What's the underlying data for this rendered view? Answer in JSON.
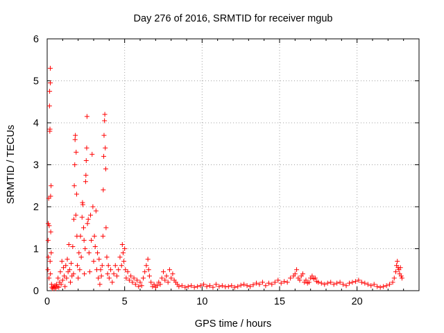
{
  "chart_data": {
    "type": "scatter",
    "title": "Day 276 of 2016, SRMTID for receiver mgub",
    "xlabel": "GPS time / hours",
    "ylabel": "SRMTID / TECUs",
    "xlim": [
      0,
      24
    ],
    "ylim": [
      0,
      6
    ],
    "xticks": [
      0,
      5,
      10,
      15,
      20
    ],
    "yticks": [
      0,
      1,
      2,
      3,
      4,
      5,
      6
    ],
    "grid": true,
    "marker": "plus",
    "series_color": "#ff0000",
    "series": [
      {
        "name": "SRMTID",
        "points": [
          [
            0.05,
            0.5
          ],
          [
            0.06,
            1.2
          ],
          [
            0.07,
            1.6
          ],
          [
            0.08,
            0.8
          ],
          [
            0.1,
            2.2
          ],
          [
            0.12,
            0.3
          ],
          [
            0.13,
            1.55
          ],
          [
            0.15,
            4.4
          ],
          [
            0.16,
            4.75
          ],
          [
            0.17,
            3.8
          ],
          [
            0.18,
            3.85
          ],
          [
            0.19,
            0.7
          ],
          [
            0.2,
            5.3
          ],
          [
            0.2,
            4.95
          ],
          [
            0.21,
            0.4
          ],
          [
            0.22,
            2.25
          ],
          [
            0.23,
            1.4
          ],
          [
            0.25,
            2.5
          ],
          [
            0.26,
            0.9
          ],
          [
            0.28,
            0.15
          ],
          [
            0.3,
            0.08
          ],
          [
            0.35,
            0.05
          ],
          [
            0.4,
            0.1
          ],
          [
            0.45,
            0.07
          ],
          [
            0.5,
            0.12
          ],
          [
            0.55,
            0.05
          ],
          [
            0.6,
            0.15
          ],
          [
            0.65,
            0.1
          ],
          [
            0.7,
            0.3
          ],
          [
            0.75,
            0.08
          ],
          [
            0.8,
            0.2
          ],
          [
            0.85,
            0.45
          ],
          [
            0.9,
            0.15
          ],
          [
            0.95,
            0.7
          ],
          [
            1.0,
            0.25
          ],
          [
            1.05,
            0.55
          ],
          [
            1.1,
            0.35
          ],
          [
            1.15,
            0.1
          ],
          [
            1.2,
            0.6
          ],
          [
            1.25,
            0.3
          ],
          [
            1.3,
            0.75
          ],
          [
            1.35,
            0.45
          ],
          [
            1.4,
            1.1
          ],
          [
            1.45,
            0.5
          ],
          [
            1.5,
            0.2
          ],
          [
            1.55,
            0.65
          ],
          [
            1.6,
            0.35
          ],
          [
            1.65,
            1.05
          ],
          [
            1.7,
            0.4
          ],
          [
            1.72,
            1.7
          ],
          [
            1.75,
            2.5
          ],
          [
            1.78,
            3.0
          ],
          [
            1.8,
            3.6
          ],
          [
            1.82,
            3.7
          ],
          [
            1.85,
            1.8
          ],
          [
            1.87,
            3.3
          ],
          [
            1.9,
            2.3
          ],
          [
            1.92,
            1.3
          ],
          [
            1.95,
            0.6
          ],
          [
            2.0,
            0.3
          ],
          [
            2.05,
            0.9
          ],
          [
            2.1,
            0.5
          ],
          [
            2.15,
            1.3
          ],
          [
            2.2,
            0.8
          ],
          [
            2.25,
            1.75
          ],
          [
            2.28,
            2.1
          ],
          [
            2.3,
            2.05
          ],
          [
            2.35,
            1.5
          ],
          [
            2.38,
            1.2
          ],
          [
            2.4,
            0.4
          ],
          [
            2.45,
            1.0
          ],
          [
            2.48,
            2.6
          ],
          [
            2.5,
            2.75
          ],
          [
            2.52,
            3.1
          ],
          [
            2.55,
            3.4
          ],
          [
            2.57,
            4.15
          ],
          [
            2.6,
            1.6
          ],
          [
            2.65,
            1.7
          ],
          [
            2.7,
            0.9
          ],
          [
            2.75,
            0.45
          ],
          [
            2.8,
            1.8
          ],
          [
            2.85,
            1.2
          ],
          [
            2.9,
            3.25
          ],
          [
            2.95,
            2.0
          ],
          [
            3.0,
            0.7
          ],
          [
            3.05,
            1.3
          ],
          [
            3.1,
            1.05
          ],
          [
            3.15,
            1.9
          ],
          [
            3.2,
            0.5
          ],
          [
            3.25,
            0.9
          ],
          [
            3.3,
            0.3
          ],
          [
            3.35,
            0.75
          ],
          [
            3.4,
            0.15
          ],
          [
            3.45,
            0.5
          ],
          [
            3.5,
            0.35
          ],
          [
            3.55,
            0.6
          ],
          [
            3.6,
            1.3
          ],
          [
            3.62,
            2.4
          ],
          [
            3.65,
            3.2
          ],
          [
            3.67,
            3.7
          ],
          [
            3.7,
            4.05
          ],
          [
            3.72,
            4.2
          ],
          [
            3.75,
            3.4
          ],
          [
            3.78,
            2.9
          ],
          [
            3.8,
            1.5
          ],
          [
            3.85,
            0.8
          ],
          [
            3.9,
            0.4
          ],
          [
            3.95,
            0.6
          ],
          [
            4.0,
            0.3
          ],
          [
            4.1,
            0.5
          ],
          [
            4.2,
            0.2
          ],
          [
            4.3,
            0.4
          ],
          [
            4.4,
            0.6
          ],
          [
            4.5,
            0.35
          ],
          [
            4.6,
            0.5
          ],
          [
            4.7,
            0.8
          ],
          [
            4.8,
            0.6
          ],
          [
            4.85,
            1.1
          ],
          [
            4.9,
            0.9
          ],
          [
            4.95,
            0.7
          ],
          [
            5.0,
            1.0
          ],
          [
            5.05,
            0.5
          ],
          [
            5.1,
            0.3
          ],
          [
            5.2,
            0.45
          ],
          [
            5.3,
            0.25
          ],
          [
            5.4,
            0.35
          ],
          [
            5.5,
            0.2
          ],
          [
            5.6,
            0.3
          ],
          [
            5.7,
            0.15
          ],
          [
            5.8,
            0.25
          ],
          [
            5.9,
            0.1
          ],
          [
            6.0,
            0.2
          ],
          [
            6.1,
            0.12
          ],
          [
            6.2,
            0.3
          ],
          [
            6.3,
            0.45
          ],
          [
            6.4,
            0.6
          ],
          [
            6.5,
            0.75
          ],
          [
            6.55,
            0.5
          ],
          [
            6.6,
            0.35
          ],
          [
            6.7,
            0.2
          ],
          [
            6.8,
            0.1
          ],
          [
            6.9,
            0.15
          ],
          [
            7.0,
            0.08
          ],
          [
            7.1,
            0.12
          ],
          [
            7.2,
            0.2
          ],
          [
            7.3,
            0.15
          ],
          [
            7.4,
            0.3
          ],
          [
            7.5,
            0.45
          ],
          [
            7.6,
            0.25
          ],
          [
            7.7,
            0.35
          ],
          [
            7.8,
            0.2
          ],
          [
            7.9,
            0.5
          ],
          [
            8.0,
            0.3
          ],
          [
            8.1,
            0.4
          ],
          [
            8.2,
            0.25
          ],
          [
            8.3,
            0.2
          ],
          [
            8.4,
            0.15
          ],
          [
            8.5,
            0.1
          ],
          [
            8.7,
            0.12
          ],
          [
            8.9,
            0.08
          ],
          [
            9.1,
            0.1
          ],
          [
            9.3,
            0.12
          ],
          [
            9.5,
            0.08
          ],
          [
            9.7,
            0.1
          ],
          [
            9.9,
            0.12
          ],
          [
            10.1,
            0.15
          ],
          [
            10.3,
            0.1
          ],
          [
            10.5,
            0.12
          ],
          [
            10.7,
            0.08
          ],
          [
            10.9,
            0.15
          ],
          [
            11.1,
            0.1
          ],
          [
            11.3,
            0.12
          ],
          [
            11.5,
            0.09
          ],
          [
            11.7,
            0.1
          ],
          [
            11.9,
            0.12
          ],
          [
            12.1,
            0.08
          ],
          [
            12.3,
            0.1
          ],
          [
            12.5,
            0.13
          ],
          [
            12.7,
            0.15
          ],
          [
            12.9,
            0.12
          ],
          [
            13.1,
            0.1
          ],
          [
            13.3,
            0.14
          ],
          [
            13.5,
            0.18
          ],
          [
            13.7,
            0.15
          ],
          [
            13.9,
            0.2
          ],
          [
            14.1,
            0.12
          ],
          [
            14.3,
            0.18
          ],
          [
            14.5,
            0.15
          ],
          [
            14.7,
            0.2
          ],
          [
            14.9,
            0.25
          ],
          [
            15.1,
            0.18
          ],
          [
            15.3,
            0.22
          ],
          [
            15.5,
            0.2
          ],
          [
            15.7,
            0.3
          ],
          [
            15.9,
            0.35
          ],
          [
            16.0,
            0.4
          ],
          [
            16.1,
            0.5
          ],
          [
            16.2,
            0.3
          ],
          [
            16.3,
            0.25
          ],
          [
            16.4,
            0.35
          ],
          [
            16.5,
            0.4
          ],
          [
            16.6,
            0.2
          ],
          [
            16.7,
            0.25
          ],
          [
            16.8,
            0.18
          ],
          [
            16.9,
            0.2
          ],
          [
            17.0,
            0.3
          ],
          [
            17.1,
            0.35
          ],
          [
            17.2,
            0.28
          ],
          [
            17.3,
            0.3
          ],
          [
            17.4,
            0.22
          ],
          [
            17.5,
            0.2
          ],
          [
            17.7,
            0.18
          ],
          [
            17.9,
            0.15
          ],
          [
            18.1,
            0.18
          ],
          [
            18.3,
            0.2
          ],
          [
            18.5,
            0.15
          ],
          [
            18.7,
            0.18
          ],
          [
            18.9,
            0.2
          ],
          [
            19.1,
            0.15
          ],
          [
            19.3,
            0.12
          ],
          [
            19.5,
            0.18
          ],
          [
            19.7,
            0.2
          ],
          [
            19.9,
            0.22
          ],
          [
            20.1,
            0.25
          ],
          [
            20.3,
            0.2
          ],
          [
            20.5,
            0.18
          ],
          [
            20.7,
            0.15
          ],
          [
            20.9,
            0.12
          ],
          [
            21.1,
            0.15
          ],
          [
            21.3,
            0.1
          ],
          [
            21.5,
            0.08
          ],
          [
            21.7,
            0.1
          ],
          [
            21.9,
            0.12
          ],
          [
            22.1,
            0.15
          ],
          [
            22.3,
            0.2
          ],
          [
            22.4,
            0.3
          ],
          [
            22.5,
            0.45
          ],
          [
            22.55,
            0.6
          ],
          [
            22.6,
            0.7
          ],
          [
            22.65,
            0.55
          ],
          [
            22.7,
            0.5
          ],
          [
            22.75,
            0.4
          ],
          [
            22.8,
            0.55
          ],
          [
            22.85,
            0.35
          ],
          [
            22.9,
            0.3
          ]
        ]
      }
    ]
  }
}
